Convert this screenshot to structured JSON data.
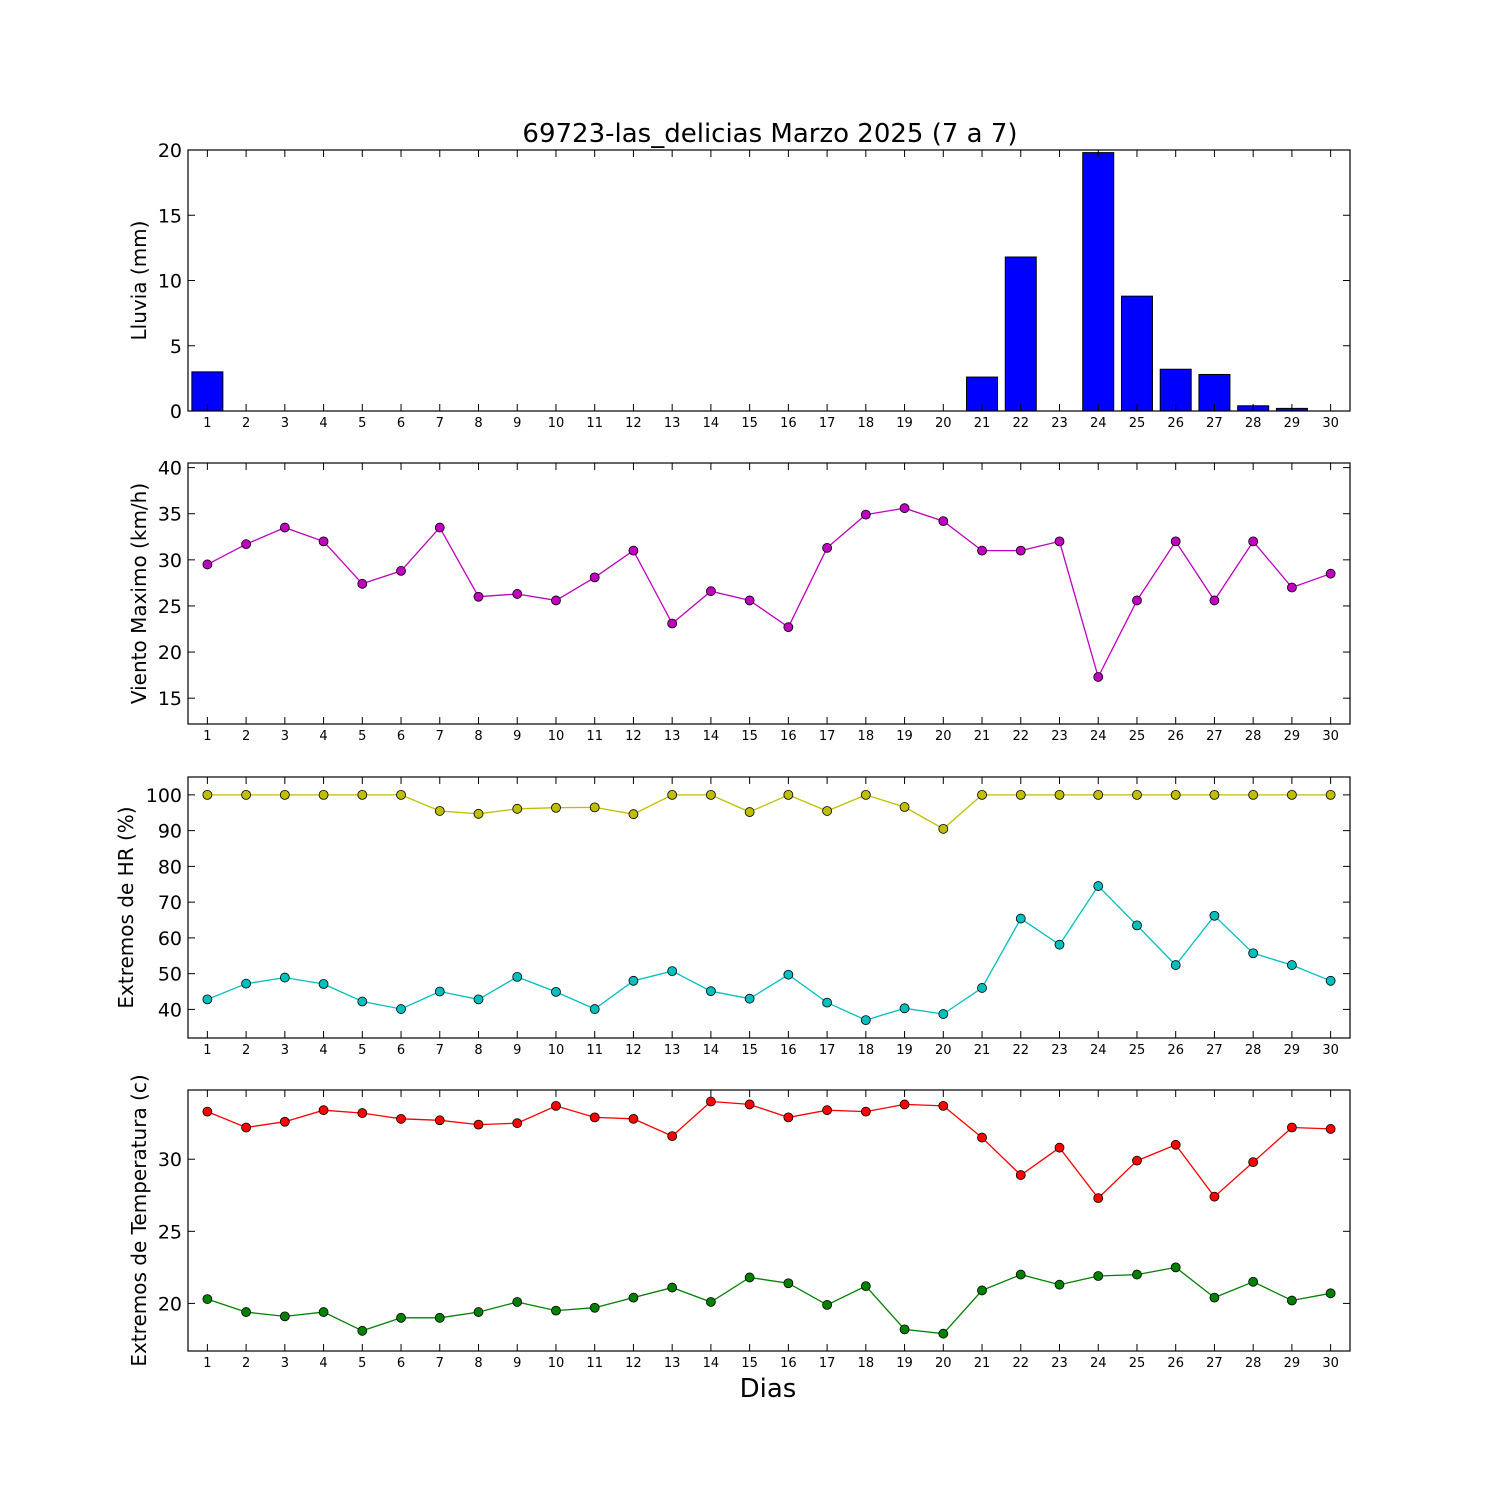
{
  "chart_data": {
    "title": "69723-las_delicias Marzo 2025  (7 a 7)",
    "xlabel": "Dias",
    "x": [
      1,
      2,
      3,
      4,
      5,
      6,
      7,
      8,
      9,
      10,
      11,
      12,
      13,
      14,
      15,
      16,
      17,
      18,
      19,
      20,
      21,
      22,
      23,
      24,
      25,
      26,
      27,
      28,
      29,
      30
    ],
    "panels": [
      {
        "type": "bar",
        "ylabel": "Lluvia (mm)",
        "ylim": [
          0,
          20
        ],
        "yticks": [
          0,
          5,
          10,
          15,
          20
        ],
        "series": [
          {
            "color": "#0000ff",
            "values": [
              3.0,
              0,
              0,
              0,
              0,
              0,
              0,
              0,
              0,
              0,
              0,
              0,
              0,
              0,
              0,
              0,
              0,
              0,
              0,
              0,
              2.6,
              11.8,
              0,
              19.8,
              8.8,
              3.2,
              2.8,
              0.4,
              0.2,
              0
            ]
          }
        ]
      },
      {
        "type": "line",
        "ylabel": "Viento Maximo (km/h)",
        "ylim": [
          12.2,
          40.5
        ],
        "yticks": [
          15,
          20,
          25,
          30,
          35,
          40
        ],
        "series": [
          {
            "color": "#bf00bf",
            "values": [
              29.5,
              31.7,
              33.5,
              32.0,
              27.4,
              28.8,
              33.5,
              26.0,
              26.3,
              25.6,
              28.1,
              31.0,
              23.1,
              26.6,
              25.6,
              22.7,
              31.3,
              34.9,
              35.6,
              34.2,
              31.0,
              31.0,
              32.0,
              17.3,
              25.6,
              32.0,
              25.6,
              32.0,
              27.0,
              28.5
            ]
          }
        ]
      },
      {
        "type": "line",
        "ylabel": "Extremos de HR (%)",
        "ylim": [
          32,
          105
        ],
        "yticks": [
          40,
          50,
          60,
          70,
          80,
          90,
          100
        ],
        "series": [
          {
            "color": "#bfbf00",
            "values": [
              100,
              100,
              100,
              100,
              100,
              100,
              95.5,
              94.7,
              96.1,
              96.4,
              96.5,
              94.6,
              100,
              100,
              95.2,
              100,
              95.5,
              100,
              96.6,
              90.5,
              100,
              100,
              100,
              100,
              100,
              100,
              100,
              100,
              100,
              100
            ]
          },
          {
            "color": "#00bfbf",
            "values": [
              42.8,
              47.2,
              48.9,
              47.1,
              42.2,
              40.1,
              45.0,
              42.8,
              49.1,
              44.9,
              40.1,
              48.0,
              50.7,
              45.1,
              43.0,
              49.7,
              41.9,
              37.0,
              40.3,
              38.7,
              46.0,
              65.4,
              58.1,
              74.5,
              63.5,
              52.4,
              66.2,
              55.7,
              52.4,
              48.0
            ]
          }
        ]
      },
      {
        "type": "line",
        "ylabel": "Extremos de Temperatura (c)",
        "ylim": [
          16.7,
          34.8
        ],
        "yticks": [
          20,
          25,
          30
        ],
        "series": [
          {
            "color": "#ff0000",
            "values": [
              33.3,
              32.2,
              32.6,
              33.4,
              33.2,
              32.8,
              32.7,
              32.4,
              32.5,
              33.7,
              32.9,
              32.8,
              31.6,
              34.0,
              33.8,
              32.9,
              33.4,
              33.3,
              33.8,
              33.7,
              31.5,
              28.9,
              30.8,
              27.3,
              29.9,
              31.0,
              27.4,
              29.8,
              32.2,
              32.1
            ]
          },
          {
            "color": "#008000",
            "values": [
              20.3,
              19.4,
              19.1,
              19.4,
              18.1,
              19.0,
              19.0,
              19.4,
              20.1,
              19.5,
              19.7,
              20.4,
              21.1,
              20.1,
              21.8,
              21.4,
              19.9,
              21.2,
              18.2,
              17.9,
              20.9,
              22.0,
              21.3,
              21.9,
              22.0,
              22.5,
              20.4,
              21.5,
              20.2,
              20.7
            ]
          }
        ]
      }
    ]
  }
}
